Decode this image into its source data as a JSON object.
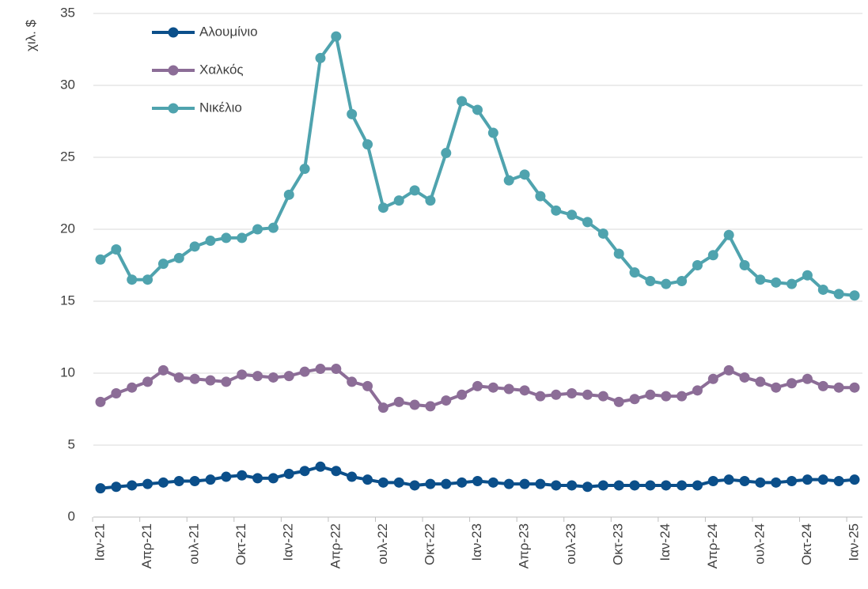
{
  "chart_data": {
    "type": "line",
    "y_label": "χιλ. $",
    "categories": [
      "Ιαν-21",
      null,
      null,
      "Απρ-21",
      null,
      null,
      "ουλ-21",
      null,
      null,
      "Οκτ-21",
      null,
      null,
      "Ιαν-22",
      null,
      null,
      "Απρ-22",
      null,
      null,
      "ουλ-22",
      null,
      null,
      "Οκτ-22",
      null,
      null,
      "Ιαν-23",
      null,
      null,
      "Απρ-23",
      null,
      null,
      "ουλ-23",
      null,
      null,
      "Οκτ-23",
      null,
      null,
      "Ιαν-24",
      null,
      null,
      "Απρ-24",
      null,
      null,
      "ουλ-24",
      null,
      null,
      "Οκτ-24",
      null,
      null,
      "Ιαν-25"
    ],
    "series": [
      {
        "name": "Αλουμίνιο",
        "color": "#0b4f8a",
        "values": [
          2.0,
          2.1,
          2.2,
          2.3,
          2.4,
          2.5,
          2.5,
          2.6,
          2.8,
          2.9,
          2.7,
          2.7,
          3.0,
          3.2,
          3.5,
          3.2,
          2.8,
          2.6,
          2.4,
          2.4,
          2.2,
          2.3,
          2.3,
          2.4,
          2.5,
          2.4,
          2.3,
          2.3,
          2.3,
          2.2,
          2.2,
          2.1,
          2.2,
          2.2,
          2.2,
          2.2,
          2.2,
          2.2,
          2.2,
          2.5,
          2.6,
          2.5,
          2.4,
          2.4,
          2.5,
          2.6,
          2.6,
          2.5,
          2.6
        ]
      },
      {
        "name": "Χαλκός",
        "color": "#8c6d97",
        "values": [
          8.0,
          8.6,
          9.0,
          9.4,
          10.2,
          9.7,
          9.6,
          9.5,
          9.4,
          9.9,
          9.8,
          9.7,
          9.8,
          10.1,
          10.3,
          10.3,
          9.4,
          9.1,
          7.6,
          8.0,
          7.8,
          7.7,
          8.1,
          8.5,
          9.1,
          9.0,
          8.9,
          8.8,
          8.4,
          8.5,
          8.6,
          8.5,
          8.4,
          8.0,
          8.2,
          8.5,
          8.4,
          8.4,
          8.8,
          9.6,
          10.2,
          9.7,
          9.4,
          9.0,
          9.3,
          9.6,
          9.1,
          9.0,
          9.0
        ]
      },
      {
        "name": "Νικέλιο",
        "color": "#4fa3ae",
        "values": [
          17.9,
          18.6,
          16.5,
          16.5,
          17.6,
          18.0,
          18.8,
          19.2,
          19.4,
          19.4,
          20.0,
          20.1,
          22.4,
          24.2,
          31.9,
          33.4,
          28.0,
          25.9,
          21.5,
          22.0,
          22.7,
          22.0,
          25.3,
          28.9,
          28.3,
          26.7,
          23.4,
          23.8,
          22.3,
          21.3,
          21.0,
          20.5,
          19.7,
          18.3,
          17.0,
          16.4,
          16.2,
          16.4,
          17.5,
          18.2,
          19.6,
          17.5,
          16.5,
          16.3,
          16.2,
          16.8,
          15.8,
          15.5,
          15.4
        ]
      }
    ],
    "ylim": [
      0,
      35
    ],
    "yticks": [
      0,
      5,
      10,
      15,
      20,
      25,
      30,
      35
    ],
    "grid": true,
    "legend": "top-left"
  }
}
